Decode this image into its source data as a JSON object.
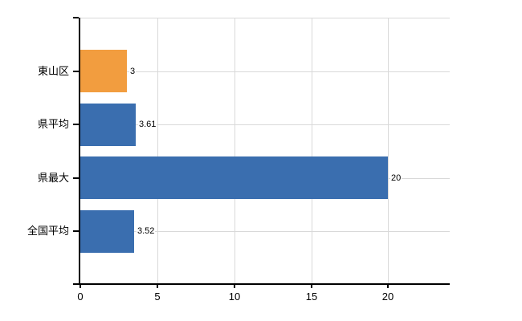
{
  "chart_data": {
    "type": "bar",
    "orientation": "horizontal",
    "title": "",
    "xlabel": "",
    "ylabel": "",
    "categories": [
      "東山区",
      "県平均",
      "県最大",
      "全国平均"
    ],
    "values": [
      3,
      3.61,
      20,
      3.52
    ],
    "value_labels": [
      "3",
      "3.61",
      "20",
      "3.52"
    ],
    "bar_colors": [
      "#f29d3f",
      "#3a6eaf",
      "#3a6eaf",
      "#3a6eaf"
    ],
    "xlim": [
      0,
      24
    ],
    "xticks": [
      0,
      5,
      10,
      15,
      20
    ],
    "xtick_labels": [
      "0",
      "5",
      "10",
      "15",
      "20"
    ],
    "grid": true,
    "legend": false,
    "background_color": "#ffffff",
    "grid_color": "#d9d9d9",
    "axis_color": "#000000",
    "text_color": "#000000"
  }
}
